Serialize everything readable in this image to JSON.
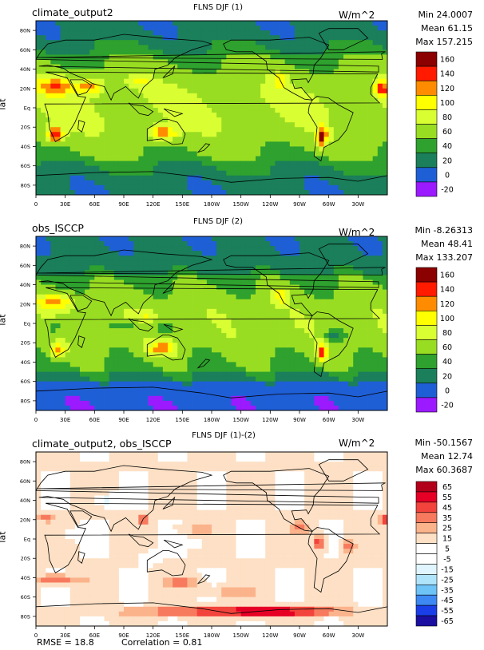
{
  "chart_data": [
    {
      "type": "heatmap",
      "name": "climate_output2",
      "title": "FLNS DJF (1)",
      "units": "W/m^2",
      "stats": {
        "min": "Min 24.0007",
        "mean": "Mean 61.15",
        "max": "Max 157.215"
      },
      "ylabel": "lat",
      "xticks": [
        "0",
        "30E",
        "60E",
        "90E",
        "120E",
        "150E",
        "180W",
        "150W",
        "120W",
        "90W",
        "60W",
        "30W"
      ],
      "yticks": [
        "80N",
        "60N",
        "40N",
        "20N",
        "Eq",
        "20S",
        "40S",
        "60S",
        "80S"
      ],
      "colorbar": {
        "levels": [
          "160",
          "140",
          "120",
          "100",
          "80",
          "60",
          "40",
          "20",
          "0",
          "-20"
        ],
        "colors": [
          "#8b0000",
          "#ff1a00",
          "#ff8c00",
          "#ffff00",
          "#d9ff33",
          "#99dd22",
          "#2ea12e",
          "#1a7f5a",
          "#1f5fd6",
          "#9b1aff"
        ]
      }
    },
    {
      "type": "heatmap",
      "name": "obs_ISCCP",
      "title": "FLNS DJF (2)",
      "units": "W/m^2",
      "stats": {
        "min": "Min -8.26313",
        "mean": "Mean 48.41",
        "max": "Max 133.207"
      },
      "ylabel": "lat",
      "xticks": [
        "0",
        "30E",
        "60E",
        "90E",
        "120E",
        "150E",
        "180W",
        "150W",
        "120W",
        "90W",
        "60W",
        "30W"
      ],
      "yticks": [
        "80N",
        "60N",
        "40N",
        "20N",
        "Eq",
        "20S",
        "40S",
        "60S",
        "80S"
      ],
      "colorbar": {
        "levels": [
          "160",
          "140",
          "120",
          "100",
          "80",
          "60",
          "40",
          "20",
          "0",
          "-20"
        ],
        "colors": [
          "#8b0000",
          "#ff1a00",
          "#ff8c00",
          "#ffff00",
          "#d9ff33",
          "#99dd22",
          "#2ea12e",
          "#1a7f5a",
          "#1f5fd6",
          "#9b1aff"
        ]
      }
    },
    {
      "type": "heatmap",
      "name": "climate_output2, obs_ISCCP",
      "title": "FLNS DJF (1)-(2)",
      "units": "W/m^2",
      "stats": {
        "min": "Min -50.1567",
        "mean": "Mean 12.74",
        "max": "Max 60.3687"
      },
      "ylabel": "lat",
      "xticks": [
        "0",
        "30E",
        "60E",
        "90E",
        "120E",
        "150E",
        "180W",
        "150W",
        "120W",
        "90W",
        "60W",
        "30W"
      ],
      "yticks": [
        "80N",
        "60N",
        "40N",
        "20N",
        "Eq",
        "20S",
        "40S",
        "60S",
        "80S"
      ],
      "colorbar": {
        "levels": [
          "65",
          "55",
          "45",
          "35",
          "25",
          "15",
          "5",
          "-5",
          "-15",
          "-25",
          "-35",
          "-45",
          "-55",
          "-65"
        ],
        "colors": [
          "#b3001a",
          "#e60026",
          "#f2443c",
          "#f77a5e",
          "#fbb38c",
          "#fde0c5",
          "#ffffff",
          "#ffffff",
          "#e0f5ff",
          "#b0e4fb",
          "#6ec3f7",
          "#3d88f2",
          "#1a3fe8",
          "#1a0fa0"
        ]
      },
      "rmse": "RMSE = 18.8",
      "correlation": "Correlation = 0.81"
    }
  ]
}
